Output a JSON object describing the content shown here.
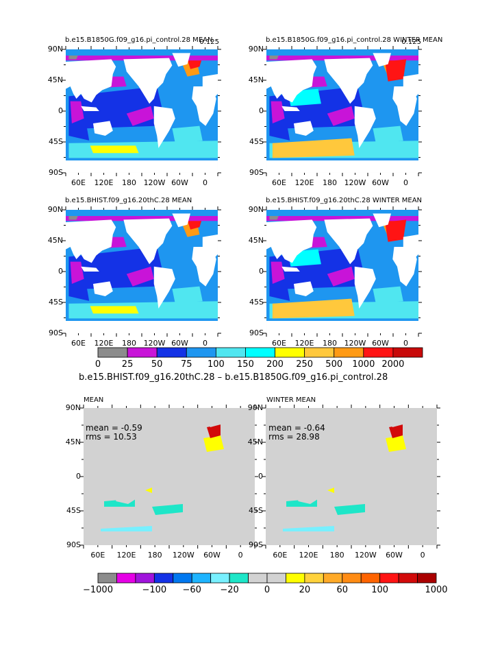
{
  "colors": {
    "ocean_levels": [
      "#8c8c8c",
      "#c814d8",
      "#1432e6",
      "#1e96f0",
      "#50e6f0",
      "#00ffff",
      "#ffff00",
      "#ffc83c",
      "#ff9a14",
      "#ff1414",
      "#c80a0a"
    ],
    "diff_levels": [
      "#8c8c8c",
      "#e600e6",
      "#a014dc",
      "#1432e6",
      "#0078f0",
      "#1eb4ff",
      "#78f0ff",
      "#1ee6c8",
      "#d2d2d2",
      "#d2d2d2",
      "#ffff00",
      "#ffd23c",
      "#ffaa28",
      "#ff8c14",
      "#ff6400",
      "#ff1414",
      "#d20a0a",
      "#aa0000"
    ],
    "land": "#ffffff",
    "diff_background": "#d2d2d2"
  },
  "panels": [
    {
      "title": "b.e15.B1850G.f09_g16.pi_control.28 MEAN",
      "corner": "0.125"
    },
    {
      "title": "b.e15.B1850G.f09_g16.pi_control.28 WINTER MEAN",
      "corner": "0.125"
    },
    {
      "title": "b.e15.BHIST.f09_g16.20thC.28 MEAN",
      "corner": ""
    },
    {
      "title": "b.e15.BHIST.f09_g16.20thC.28 WINTER MEAN",
      "corner": ""
    },
    {
      "title": "MEAN",
      "corner": "",
      "mean_text": "mean = -0.59",
      "rms_text": "rms = 10.53"
    },
    {
      "title": "WINTER MEAN",
      "corner": "",
      "mean_text": "mean = -0.64",
      "rms_text": "rms = 28.98"
    }
  ],
  "axes": {
    "lat_ticks": [
      "90N",
      "45N",
      "0",
      "45S",
      "90S"
    ],
    "lon_ticks": [
      "60E",
      "120E",
      "180",
      "120W",
      "60W",
      "0"
    ]
  },
  "colorbar_top": {
    "labels": [
      "0",
      "25",
      "50",
      "75",
      "100",
      "150",
      "200",
      "250",
      "500",
      "1000",
      "2000"
    ]
  },
  "diff_title": "b.e15.BHIST.f09_g16.20thC.28 – b.e15.B1850G.f09_g16.pi_control.28",
  "colorbar_bottom": {
    "labels": [
      "−1000",
      "−100",
      "−60",
      "−20",
      "0",
      "20",
      "60",
      "100",
      "1000"
    ]
  },
  "chart_data": {
    "type": "heatmap",
    "description_free": true,
    "maps": [
      {
        "name": "",
        "kind": "field",
        "value_range": [
          0,
          2000
        ]
      },
      {
        "name": "",
        "kind": "field",
        "value_range": [
          0,
          2000
        ]
      },
      {
        "name": "",
        "kind": "field",
        "value_range": [
          0,
          2000
        ]
      },
      {
        "name": "",
        "kind": "field",
        "value_range": [
          0,
          2000
        ]
      },
      {
        "name": "",
        "kind": "difference",
        "mean": -0.59,
        "rms": 10.53
      },
      {
        "name": "",
        "kind": "difference",
        "mean": -0.64,
        "rms": 28.98
      }
    ],
    "xlim": [
      "30E",
      "30E+360"
    ],
    "ylim": [
      "90S",
      "90N"
    ],
    "levels_field": [
      0,
      25,
      50,
      75,
      100,
      150,
      200,
      250,
      500,
      1000,
      2000
    ],
    "levels_diff": [
      -1000,
      -100,
      -60,
      -20,
      0,
      20,
      60,
      100,
      1000
    ]
  }
}
